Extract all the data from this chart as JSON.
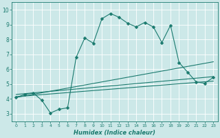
{
  "title": "",
  "xlabel": "Humidex (Indice chaleur)",
  "bg_color": "#cce8e8",
  "line_color": "#1a7a6e",
  "grid_color": "#ffffff",
  "xmin": 0,
  "xmax": 23,
  "ymin": 3,
  "ymax": 10,
  "series1": {
    "x": [
      0,
      1,
      2,
      3,
      4,
      5,
      6,
      7,
      8,
      9,
      10,
      11,
      12,
      13,
      14,
      15,
      16,
      17,
      18,
      19,
      20,
      21,
      22,
      23
    ],
    "y": [
      4.1,
      4.3,
      4.4,
      3.9,
      3.05,
      3.3,
      3.4,
      6.8,
      8.1,
      7.75,
      9.4,
      9.75,
      9.5,
      9.1,
      8.85,
      9.15,
      8.85,
      7.8,
      8.95,
      6.45,
      5.8,
      5.15,
      5.05,
      5.45
    ]
  },
  "series2": {
    "x": [
      0,
      23
    ],
    "y": [
      4.1,
      6.5
    ]
  },
  "series3": {
    "x": [
      0,
      23
    ],
    "y": [
      4.3,
      5.5
    ]
  },
  "series4": {
    "x": [
      0,
      23
    ],
    "y": [
      4.15,
      5.2
    ]
  }
}
